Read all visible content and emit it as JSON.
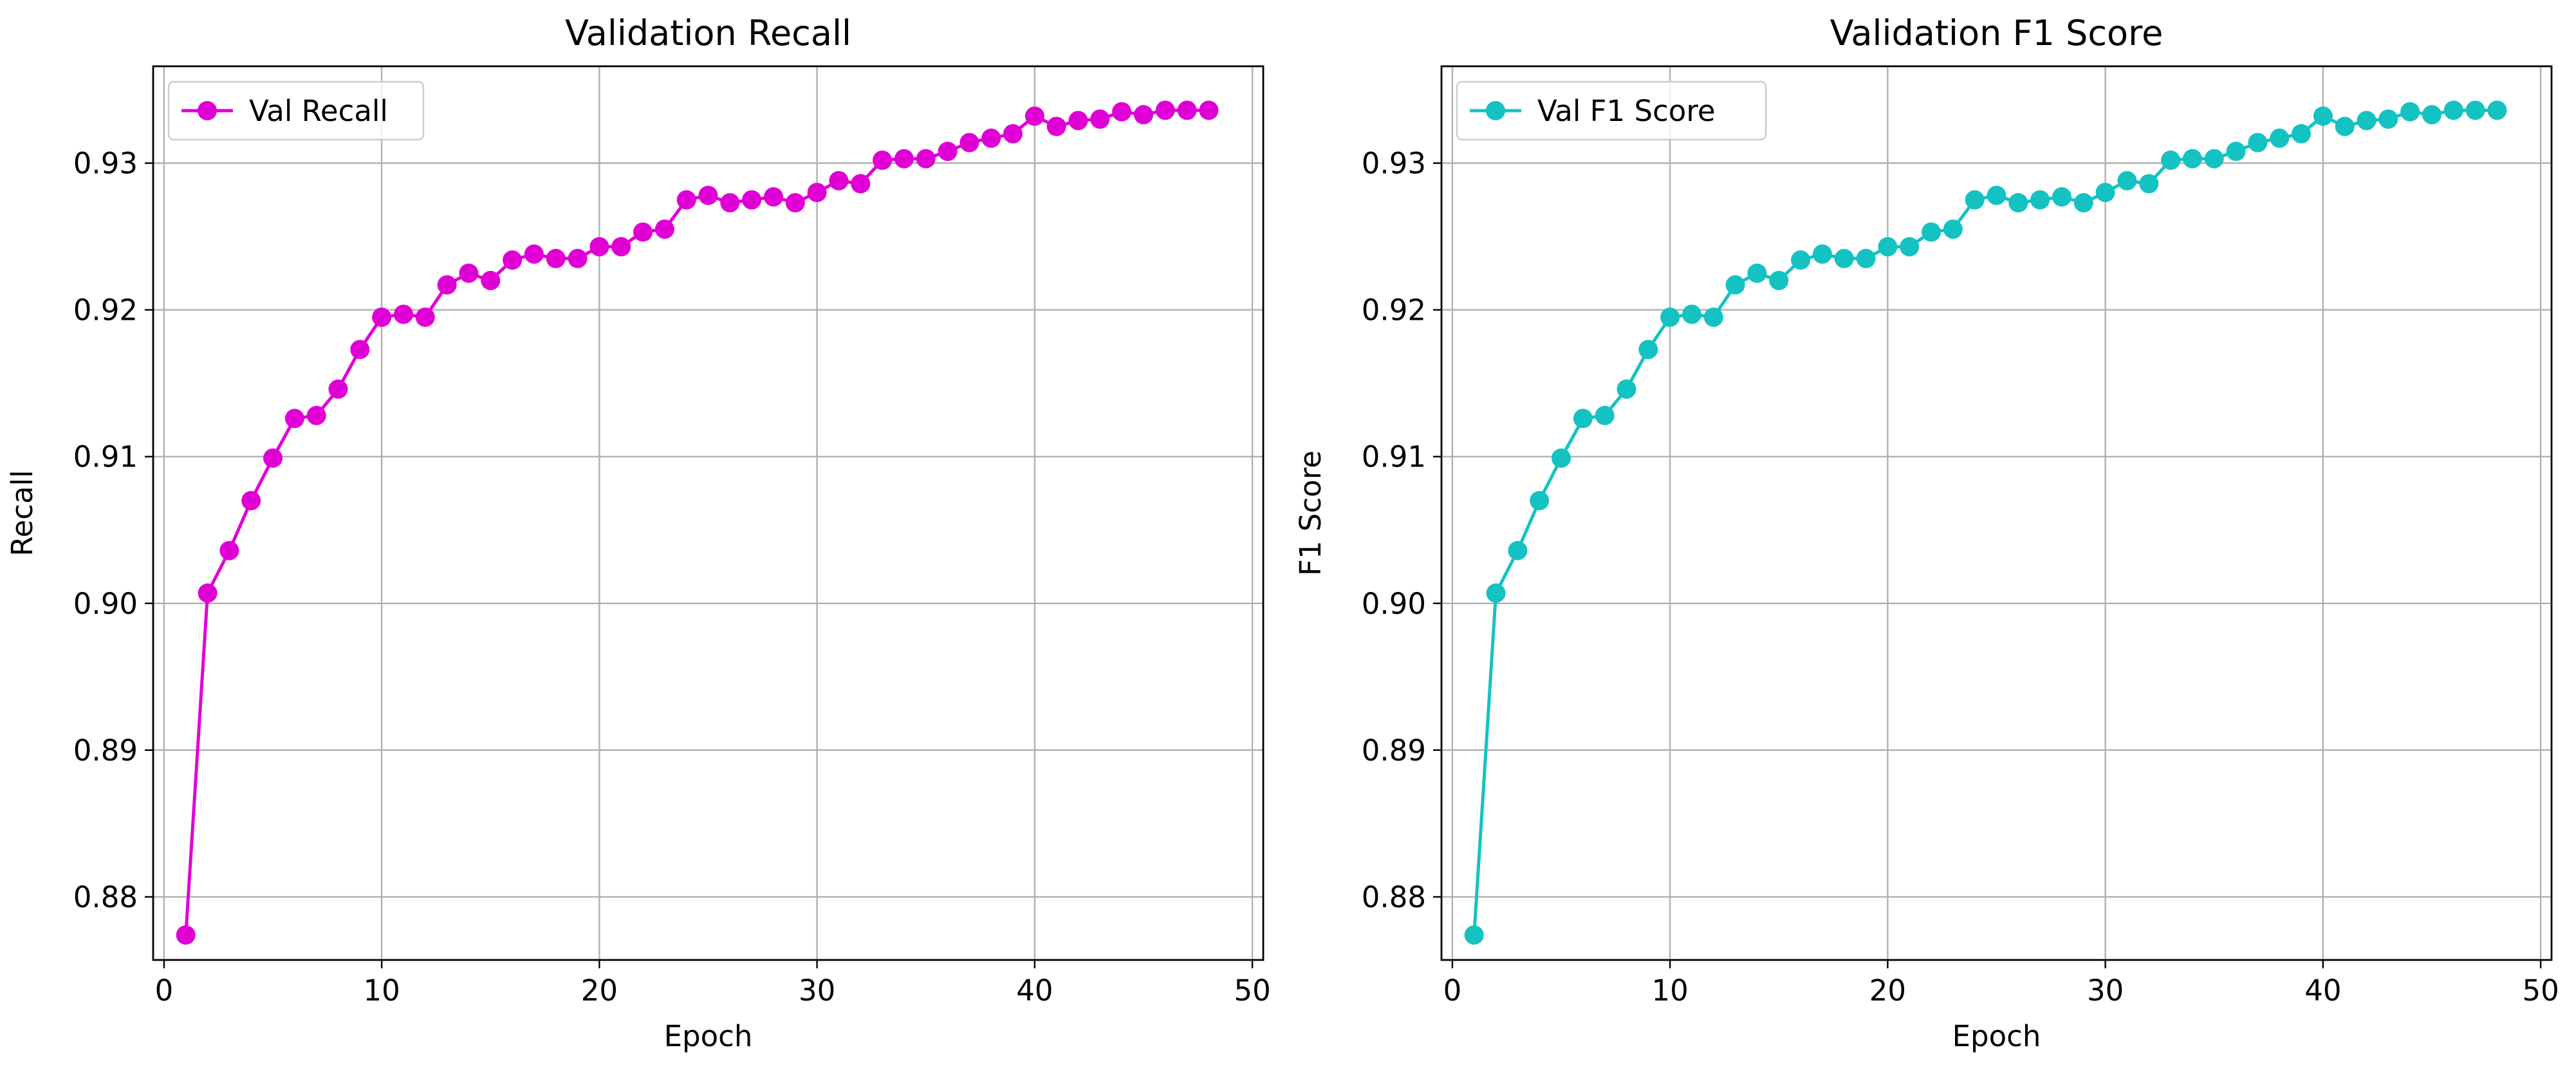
{
  "chart_data": [
    {
      "type": "line",
      "title": "Validation Recall",
      "xlabel": "Epoch",
      "ylabel": "Recall",
      "xlim": [
        -0.5,
        50.5
      ],
      "ylim": [
        0.8757,
        0.9366
      ],
      "xticks": [
        0,
        10,
        20,
        30,
        40,
        50
      ],
      "yticks": [
        0.88,
        0.89,
        0.9,
        0.91,
        0.92,
        0.93
      ],
      "ytick_labels": [
        "0.88",
        "0.89",
        "0.90",
        "0.91",
        "0.92",
        "0.93"
      ],
      "grid": true,
      "legend_position": "top-left",
      "color": "#e000d6",
      "series": [
        {
          "name": "Val Recall",
          "x": [
            1,
            2,
            3,
            4,
            5,
            6,
            7,
            8,
            9,
            10,
            11,
            12,
            13,
            14,
            15,
            16,
            17,
            18,
            19,
            20,
            21,
            22,
            23,
            24,
            25,
            26,
            27,
            28,
            29,
            30,
            31,
            32,
            33,
            34,
            35,
            36,
            37,
            38,
            39,
            40,
            41,
            42,
            43,
            44,
            45,
            46,
            47,
            48
          ],
          "values": [
            0.8774,
            0.9007,
            0.9036,
            0.907,
            0.9099,
            0.9126,
            0.9128,
            0.9146,
            0.9173,
            0.9195,
            0.9197,
            0.9195,
            0.9217,
            0.9225,
            0.922,
            0.9234,
            0.9238,
            0.9235,
            0.9235,
            0.9243,
            0.9243,
            0.9253,
            0.9255,
            0.9275,
            0.9278,
            0.9273,
            0.9275,
            0.9277,
            0.9273,
            0.928,
            0.9288,
            0.9286,
            0.9302,
            0.9303,
            0.9303,
            0.9308,
            0.9314,
            0.9317,
            0.932,
            0.9332,
            0.9325,
            0.9329,
            0.933,
            0.9335,
            0.9333,
            0.9336,
            0.9336,
            0.9336
          ]
        }
      ]
    },
    {
      "type": "line",
      "title": "Validation F1 Score",
      "xlabel": "Epoch",
      "ylabel": "F1 Score",
      "xlim": [
        -0.5,
        50.5
      ],
      "ylim": [
        0.8757,
        0.9366
      ],
      "xticks": [
        0,
        10,
        20,
        30,
        40,
        50
      ],
      "yticks": [
        0.88,
        0.89,
        0.9,
        0.91,
        0.92,
        0.93
      ],
      "ytick_labels": [
        "0.88",
        "0.89",
        "0.90",
        "0.91",
        "0.92",
        "0.93"
      ],
      "grid": true,
      "legend_position": "top-left",
      "color": "#14c2c2",
      "series": [
        {
          "name": "Val F1 Score",
          "x": [
            1,
            2,
            3,
            4,
            5,
            6,
            7,
            8,
            9,
            10,
            11,
            12,
            13,
            14,
            15,
            16,
            17,
            18,
            19,
            20,
            21,
            22,
            23,
            24,
            25,
            26,
            27,
            28,
            29,
            30,
            31,
            32,
            33,
            34,
            35,
            36,
            37,
            38,
            39,
            40,
            41,
            42,
            43,
            44,
            45,
            46,
            47,
            48
          ],
          "values": [
            0.8774,
            0.9007,
            0.9036,
            0.907,
            0.9099,
            0.9126,
            0.9128,
            0.9146,
            0.9173,
            0.9195,
            0.9197,
            0.9195,
            0.9217,
            0.9225,
            0.922,
            0.9234,
            0.9238,
            0.9235,
            0.9235,
            0.9243,
            0.9243,
            0.9253,
            0.9255,
            0.9275,
            0.9278,
            0.9273,
            0.9275,
            0.9277,
            0.9273,
            0.928,
            0.9288,
            0.9286,
            0.9302,
            0.9303,
            0.9303,
            0.9308,
            0.9314,
            0.9317,
            0.932,
            0.9332,
            0.9325,
            0.9329,
            0.933,
            0.9335,
            0.9333,
            0.9336,
            0.9336,
            0.9336
          ]
        }
      ]
    }
  ]
}
